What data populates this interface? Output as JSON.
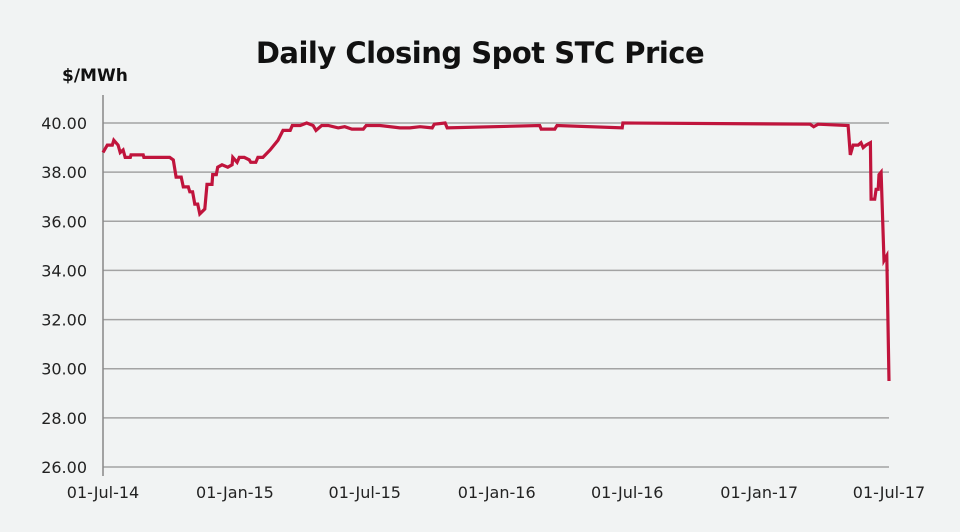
{
  "chart_data": {
    "type": "line",
    "title": "Daily Closing Spot STC Price",
    "ylabel": "$/MWh",
    "xlabel": "",
    "xlim": [
      "2014-07-01",
      "2017-07-01"
    ],
    "ylim": [
      26,
      40
    ],
    "grid": "horizontal",
    "line_color": "#c0143c",
    "x_ticks": [
      "2014-07-01",
      "2015-01-01",
      "2015-07-01",
      "2016-01-01",
      "2016-07-01",
      "2017-01-01",
      "2017-07-01"
    ],
    "x_tick_labels": [
      "01-Jul-14",
      "01-Jan-15",
      "01-Jul-15",
      "01-Jan-16",
      "01-Jul-16",
      "01-Jan-17",
      "01-Jul-17"
    ],
    "y_ticks": [
      26,
      28,
      30,
      32,
      34,
      36,
      38,
      40
    ],
    "y_tick_labels": [
      "26.00",
      "28.00",
      "30.00",
      "32.00",
      "34.00",
      "36.00",
      "38.00",
      "40.00"
    ],
    "series": [
      {
        "x": [
          "2014-07-01",
          "2014-07-07",
          "2014-07-14",
          "2014-07-16",
          "2014-07-22",
          "2014-07-25",
          "2014-07-29",
          "2014-08-01",
          "2014-08-08",
          "2014-08-09",
          "2014-08-26",
          "2014-08-27",
          "2014-10-02",
          "2014-10-07",
          "2014-10-11",
          "2014-10-18",
          "2014-10-21",
          "2014-10-28",
          "2014-10-30",
          "2014-11-03",
          "2014-11-06",
          "2014-11-10",
          "2014-11-13",
          "2014-11-20",
          "2014-11-23",
          "2014-11-30",
          "2014-12-01",
          "2014-12-06",
          "2014-12-08",
          "2014-12-14",
          "2014-12-22",
          "2014-12-28",
          "2014-12-29",
          "2015-01-04",
          "2015-01-07",
          "2015-01-14",
          "2015-01-21",
          "2015-01-23",
          "2015-01-30",
          "2015-02-02",
          "2015-02-09",
          "2015-02-19",
          "2015-03-02",
          "2015-03-09",
          "2015-03-19",
          "2015-03-22",
          "2015-04-02",
          "2015-04-11",
          "2015-04-20",
          "2015-04-24",
          "2015-05-02",
          "2015-05-11",
          "2015-05-25",
          "2015-06-03",
          "2015-06-13",
          "2015-06-29",
          "2015-07-03",
          "2015-07-22",
          "2015-08-19",
          "2015-09-02",
          "2015-09-16",
          "2015-10-03",
          "2015-10-06",
          "2015-10-21",
          "2015-10-24",
          "2016-03-01",
          "2016-03-03",
          "2016-03-22",
          "2016-03-25",
          "2016-06-24",
          "2016-06-25",
          "2017-03-13",
          "2017-03-18",
          "2017-03-24",
          "2017-05-05",
          "2017-05-08",
          "2017-05-12",
          "2017-05-19",
          "2017-05-23",
          "2017-05-26",
          "2017-05-30",
          "2017-06-05",
          "2017-06-06",
          "2017-06-11",
          "2017-06-13",
          "2017-06-16",
          "2017-06-17",
          "2017-06-20",
          "2017-06-24",
          "2017-06-28",
          "2017-07-01"
        ],
        "y": [
          38.8,
          39.1,
          39.1,
          39.3,
          39.1,
          38.8,
          38.9,
          38.6,
          38.6,
          38.7,
          38.7,
          38.6,
          38.6,
          38.5,
          37.8,
          37.8,
          37.4,
          37.4,
          37.2,
          37.2,
          36.7,
          36.7,
          36.3,
          36.5,
          37.5,
          37.5,
          37.9,
          37.9,
          38.2,
          38.3,
          38.2,
          38.3,
          38.6,
          38.4,
          38.6,
          38.6,
          38.5,
          38.4,
          38.4,
          38.6,
          38.6,
          38.9,
          39.3,
          39.7,
          39.7,
          39.9,
          39.9,
          40.0,
          39.9,
          39.7,
          39.9,
          39.9,
          39.8,
          39.85,
          39.75,
          39.75,
          39.9,
          39.9,
          39.8,
          39.8,
          39.85,
          39.8,
          39.95,
          40.0,
          39.8,
          39.9,
          39.75,
          39.75,
          39.9,
          39.8,
          40.0,
          39.95,
          39.85,
          39.95,
          39.9,
          38.7,
          39.1,
          39.1,
          39.2,
          39.0,
          39.1,
          39.2,
          36.9,
          36.9,
          37.3,
          37.3,
          37.9,
          38.0,
          34.4,
          34.6,
          29.5
        ]
      }
    ]
  }
}
